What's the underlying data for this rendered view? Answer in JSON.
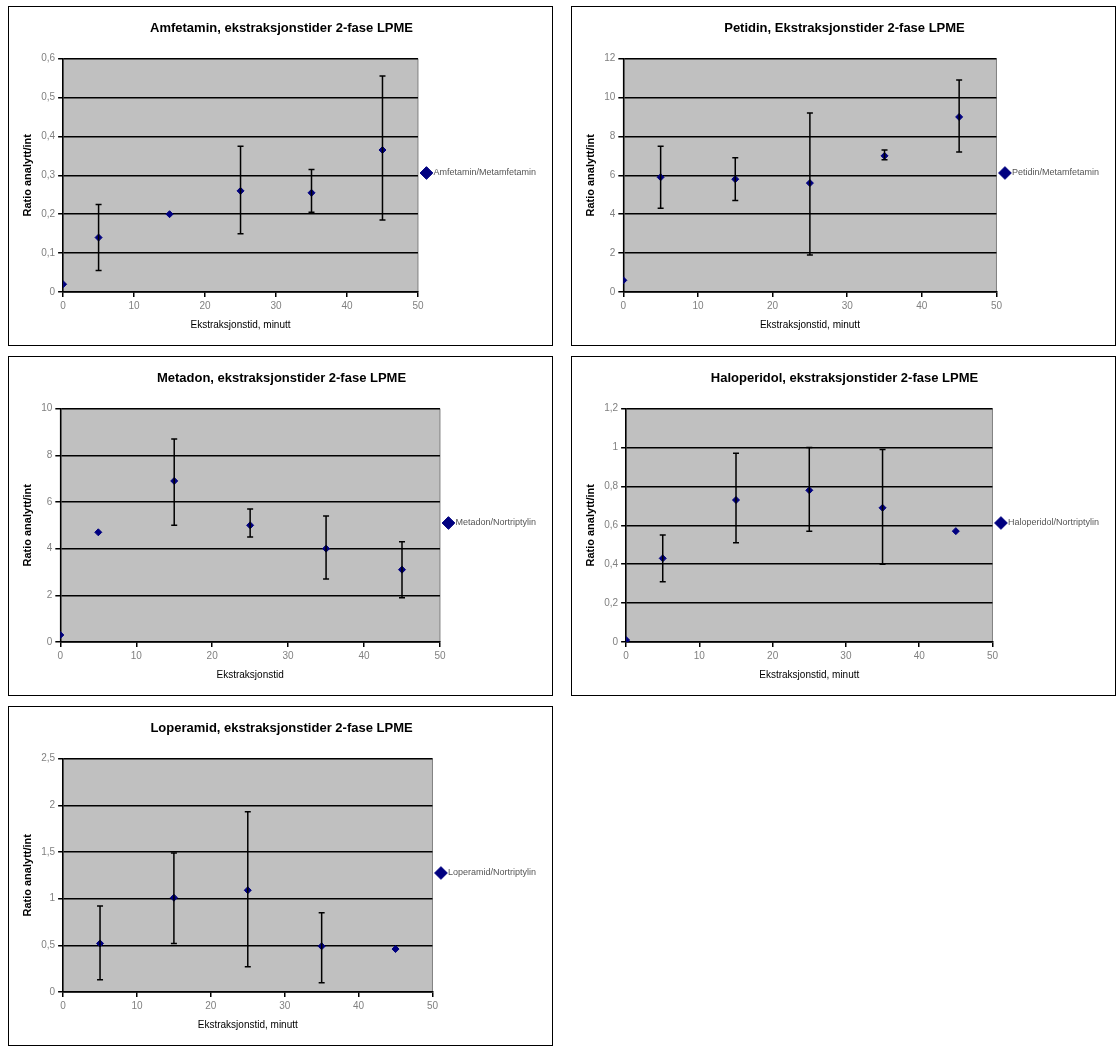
{
  "chart_data": [
    {
      "type": "scatter",
      "title": "Amfetamin, ekstraksjonstider 2-fase LPME",
      "xlabel": "Ekstraksjonstid, minutt",
      "ylabel": "Ratio analytt/int",
      "x": [
        0,
        5,
        15,
        25,
        35,
        45
      ],
      "series": [
        {
          "name": "Amfetamin/Metamfetamin",
          "color": "#000080",
          "values": [
            0.02,
            0.14,
            0.2,
            0.26,
            0.255,
            0.365
          ],
          "errors": [
            null,
            [
              0.055,
              0.225
            ],
            null,
            [
              0.15,
              0.375
            ],
            [
              0.205,
              0.315
            ],
            [
              0.185,
              0.555
            ]
          ]
        }
      ],
      "xlim": [
        0,
        50
      ],
      "xticks": [
        0,
        10,
        20,
        30,
        40,
        50
      ],
      "ylim": [
        0,
        0.6
      ],
      "yticks": [
        0,
        {
          "value": 0.1,
          "label": "0,1"
        },
        {
          "value": 0.2,
          "label": "0,2"
        },
        {
          "value": 0.3,
          "label": "0,3"
        },
        {
          "value": 0.4,
          "label": "0,4"
        },
        {
          "value": 0.5,
          "label": "0,5"
        },
        {
          "value": 0.6,
          "label": "0,6"
        }
      ],
      "grid": "y",
      "legend": "right",
      "marker": "diamond"
    },
    {
      "type": "scatter",
      "title": "Petidin, Ekstraksjonstider 2-fase LPME",
      "xlabel": "Ekstraksjonstid, minutt",
      "ylabel": "Ratio analytt/int",
      "x": [
        0,
        5,
        15,
        25,
        35,
        45
      ],
      "series": [
        {
          "name": "Petidin/Metamfetamin",
          "color": "#000080",
          "values": [
            0.6,
            5.9,
            5.8,
            5.6,
            7.0,
            9.0
          ],
          "errors": [
            null,
            [
              4.3,
              7.5
            ],
            [
              4.7,
              6.9
            ],
            [
              1.9,
              9.2
            ],
            [
              6.8,
              7.3
            ],
            [
              7.2,
              10.9
            ]
          ]
        }
      ],
      "xlim": [
        0,
        50
      ],
      "xticks": [
        0,
        10,
        20,
        30,
        40,
        50
      ],
      "ylim": [
        0,
        12
      ],
      "yticks": [
        0,
        2,
        4,
        6,
        8,
        10,
        12
      ],
      "grid": "y",
      "legend": "right",
      "marker": "diamond"
    },
    {
      "type": "scatter",
      "title": "Metadon, ekstraksjonstider 2-fase LPME",
      "xlabel": "Ekstraksjonstid",
      "ylabel": "Ratio analytt/int",
      "x": [
        0,
        5,
        15,
        25,
        35,
        45
      ],
      "series": [
        {
          "name": "Metadon/Nortriptylin",
          "color": "#000080",
          "values": [
            0.3,
            4.7,
            6.9,
            5.0,
            4.0,
            3.1
          ],
          "errors": [
            null,
            null,
            [
              5.0,
              8.7
            ],
            [
              4.5,
              5.7
            ],
            [
              2.7,
              5.4
            ],
            [
              1.9,
              4.3
            ]
          ]
        }
      ],
      "xlim": [
        0,
        50
      ],
      "xticks": [
        0,
        10,
        20,
        30,
        40,
        50
      ],
      "ylim": [
        0,
        10
      ],
      "yticks": [
        0,
        2,
        4,
        6,
        8,
        10
      ],
      "grid": "y",
      "legend": "right",
      "marker": "diamond"
    },
    {
      "type": "scatter",
      "title": "Haloperidol, ekstraksjonstider 2-fase LPME",
      "xlabel": "Ekstraksjonstid, minutt",
      "ylabel": "Ratio analytt/int",
      "x": [
        0,
        5,
        15,
        25,
        35,
        45
      ],
      "series": [
        {
          "name": "Haloperidol/Nortriptylin",
          "color": "#000080",
          "values": [
            0.01,
            0.43,
            0.73,
            0.78,
            0.69,
            0.57
          ],
          "errors": [
            null,
            [
              0.31,
              0.55
            ],
            [
              0.51,
              0.97
            ],
            [
              0.57,
              1.0
            ],
            [
              0.4,
              0.99
            ],
            null
          ]
        }
      ],
      "xlim": [
        0,
        50
      ],
      "xticks": [
        0,
        10,
        20,
        30,
        40,
        50
      ],
      "ylim": [
        0,
        1.2
      ],
      "yticks": [
        0,
        {
          "value": 0.2,
          "label": "0,2"
        },
        {
          "value": 0.4,
          "label": "0,4"
        },
        {
          "value": 0.6,
          "label": "0,6"
        },
        {
          "value": 0.8,
          "label": "0,8"
        },
        1,
        {
          "value": 1.2,
          "label": "1,2"
        }
      ],
      "grid": "y",
      "legend": "right",
      "marker": "diamond"
    },
    {
      "type": "scatter",
      "title": "Loperamid, ekstraksjonstider 2-fase LPME",
      "xlabel": "Ekstraksjonstid, minutt",
      "ylabel": "Ratio analytt/int",
      "x": [
        5,
        15,
        25,
        35,
        45
      ],
      "series": [
        {
          "name": "Loperamid/Nortriptylin",
          "color": "#000080",
          "values": [
            0.52,
            1.01,
            1.09,
            0.49,
            0.46
          ],
          "errors": [
            [
              0.13,
              0.92
            ],
            [
              0.52,
              1.49
            ],
            [
              0.27,
              1.93
            ],
            [
              0.1,
              0.85
            ],
            null
          ]
        }
      ],
      "xlim": [
        0,
        50
      ],
      "xticks": [
        0,
        10,
        20,
        30,
        40,
        50
      ],
      "ylim": [
        0,
        2.5
      ],
      "yticks": [
        0,
        {
          "value": 0.5,
          "label": "0,5"
        },
        1,
        {
          "value": 1.5,
          "label": "1,5"
        },
        2,
        {
          "value": 2.5,
          "label": "2,5"
        }
      ],
      "grid": "y",
      "legend": "right",
      "marker": "diamond"
    }
  ]
}
